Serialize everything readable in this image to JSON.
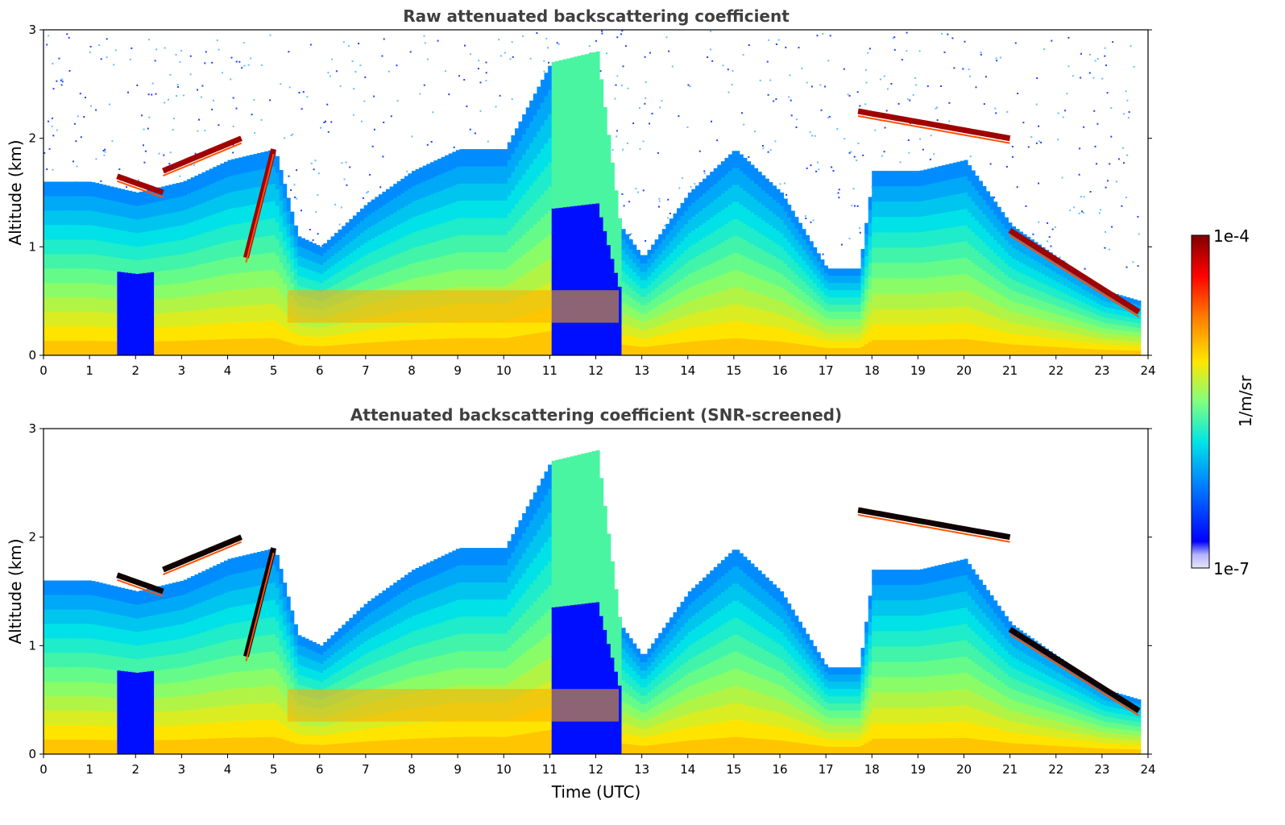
{
  "chart_data": [
    {
      "type": "heatmap",
      "title": "Raw attenuated backscattering coefficient",
      "xlabel": "",
      "ylabel": "Altitude (km)",
      "xlim": [
        0,
        24
      ],
      "ylim": [
        0,
        3
      ],
      "x_ticks": [
        0,
        1,
        2,
        3,
        4,
        5,
        6,
        7,
        8,
        9,
        10,
        11,
        12,
        13,
        14,
        15,
        16,
        17,
        18,
        19,
        20,
        21,
        22,
        23,
        24
      ],
      "y_ticks": [
        0,
        1,
        2,
        3
      ],
      "screened": false,
      "features": {
        "boundary_layer_top_km": [
          [
            0,
            1.6
          ],
          [
            1,
            1.6
          ],
          [
            2,
            1.5
          ],
          [
            3,
            1.6
          ],
          [
            4,
            1.8
          ],
          [
            5,
            1.9
          ],
          [
            5.5,
            1.1
          ],
          [
            6,
            1.0
          ],
          [
            7,
            1.4
          ],
          [
            8,
            1.7
          ],
          [
            9,
            1.9
          ],
          [
            10,
            1.9
          ],
          [
            11,
            2.7
          ],
          [
            12,
            2.8
          ],
          [
            12.5,
            1.2
          ],
          [
            13,
            0.9
          ],
          [
            14,
            1.5
          ],
          [
            15,
            1.9
          ],
          [
            16,
            1.5
          ],
          [
            17,
            0.8
          ],
          [
            17.7,
            0.8
          ],
          [
            18,
            1.7
          ],
          [
            19,
            1.7
          ],
          [
            20,
            1.8
          ],
          [
            21,
            1.2
          ],
          [
            22,
            0.9
          ],
          [
            23,
            0.6
          ],
          [
            23.8,
            0.5
          ]
        ],
        "cloud_layers_km": [
          {
            "t_start": 1.6,
            "t_end": 2.6,
            "alt": [
              1.65,
              1.5
            ]
          },
          {
            "t_start": 2.6,
            "t_end": 4.3,
            "alt": [
              1.7,
              2.0
            ]
          },
          {
            "t_start": 4.4,
            "t_end": 5.0,
            "alt": [
              0.9,
              1.9
            ]
          },
          {
            "t_start": 17.7,
            "t_end": 21.0,
            "alt": [
              2.25,
              2.0
            ]
          },
          {
            "t_start": 21.0,
            "t_end": 23.8,
            "alt": [
              1.15,
              0.4
            ]
          }
        ],
        "aerosol_layer_alt_km": 0.45
      }
    },
    {
      "type": "heatmap",
      "title": "Attenuated backscattering coefficient (SNR-screened)",
      "xlabel": "Time (UTC)",
      "ylabel": "Altitude (km)",
      "xlim": [
        0,
        24
      ],
      "ylim": [
        0,
        3
      ],
      "x_ticks": [
        0,
        1,
        2,
        3,
        4,
        5,
        6,
        7,
        8,
        9,
        10,
        11,
        12,
        13,
        14,
        15,
        16,
        17,
        18,
        19,
        20,
        21,
        22,
        23,
        24
      ],
      "y_ticks": [
        0,
        1,
        2,
        3
      ],
      "screened": true
    }
  ],
  "colorbar": {
    "label": "1/m/sr",
    "max_label": "1e-4",
    "min_label": "1e-7",
    "colormap": "jet"
  },
  "colors": {
    "title": "#404040",
    "axis": "#000000"
  }
}
